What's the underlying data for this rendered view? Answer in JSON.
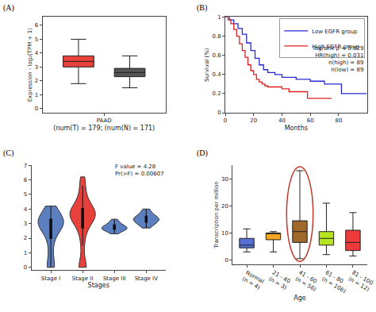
{
  "chart_data": [
    {
      "panel_label": "(A)",
      "type": "box",
      "xlabel": "(num(T) = 179; (num(N) = 171)",
      "ylabel": "Expression - log₂(TPM + 1)",
      "xlim": [
        -0.7,
        1.7
      ],
      "xticks": [
        {
          "value": 0.5,
          "label": "PAAD"
        }
      ],
      "ylim": [
        -0.3,
        6.6
      ],
      "yticks": [
        0,
        1,
        2,
        3,
        4,
        5,
        6
      ],
      "series": [
        {
          "color": "#e8413b",
          "x": 0,
          "q1": 3.0,
          "median": 3.4,
          "q3": 3.8,
          "lowerfence": 1.8,
          "upperfence": 5.0
        },
        {
          "color": "#555555",
          "x": 1,
          "q1": 2.3,
          "median": 2.6,
          "q3": 2.9,
          "lowerfence": 1.5,
          "upperfence": 3.8
        }
      ]
    },
    {
      "panel_label": "(B)",
      "type": "line",
      "line_style": "step",
      "xlabel": "Months",
      "ylabel": "Survival (%)",
      "xlim": [
        0,
        100
      ],
      "xticks": [
        0,
        20,
        40,
        60,
        80
      ],
      "ylim": [
        0,
        1
      ],
      "yticks": [
        0,
        0.2,
        0.4,
        0.6,
        0.8,
        1
      ],
      "legend": "top-right",
      "annotations": [
        "logrank p = 0.029",
        "HR(high) = 0.031",
        "n(high) = 89",
        "n(low) = 89"
      ],
      "series": [
        {
          "name": "Low EGFR group",
          "color": "#2828d8",
          "x": [
            0,
            3,
            6,
            9,
            12,
            15,
            18,
            21,
            24,
            27,
            30,
            35,
            40,
            50,
            60,
            70,
            82,
            100
          ],
          "values": [
            1,
            0.97,
            0.93,
            0.88,
            0.82,
            0.73,
            0.65,
            0.57,
            0.5,
            0.45,
            0.42,
            0.4,
            0.37,
            0.35,
            0.33,
            0.3,
            0.2,
            0.2
          ]
        },
        {
          "name": "High EGFR group",
          "color": "#e02020",
          "x": [
            0,
            2,
            4,
            6,
            8,
            10,
            12,
            14,
            16,
            18,
            20,
            22,
            24,
            26,
            28,
            30,
            40,
            45,
            58,
            75
          ],
          "values": [
            1,
            0.97,
            0.93,
            0.87,
            0.8,
            0.72,
            0.65,
            0.58,
            0.5,
            0.44,
            0.4,
            0.35,
            0.32,
            0.3,
            0.28,
            0.27,
            0.25,
            0.22,
            0.15,
            0.15
          ]
        }
      ]
    },
    {
      "panel_label": "(C)",
      "type": "violin",
      "xlabel": "Stages",
      "categories": [
        "Stage I",
        "Stage II",
        "Stage III",
        "Stage IV"
      ],
      "colors": [
        "#5b7fbf",
        "#e8413b",
        "#5b7fbf",
        "#5b7fbf"
      ],
      "ylim": [
        -0.2,
        7
      ],
      "yticks": [
        0,
        1,
        2,
        3,
        4,
        5,
        6,
        7
      ],
      "annotations": [
        "F value = 4.28",
        "Pr(>F) = 0.00607"
      ],
      "values": [
        [
          0,
          0,
          0,
          0.9,
          1.6,
          2.1,
          2.5,
          2.7,
          2.8,
          2.9,
          3.0,
          3.0,
          3.1,
          3.1,
          3.2,
          3.3,
          3.4,
          3.6,
          3.8,
          4.0,
          4.2
        ],
        [
          0,
          0,
          0,
          1.5,
          2.3,
          2.8,
          3.1,
          3.3,
          3.4,
          3.5,
          3.6,
          3.6,
          3.7,
          3.8,
          3.9,
          4.0,
          4.2,
          4.5,
          5.0,
          5.6,
          6.2
        ],
        [
          2.3,
          2.45,
          2.55,
          2.6,
          2.65,
          2.7,
          2.7,
          2.75,
          2.8,
          2.9,
          3.0,
          3.1,
          3.3
        ],
        [
          2.7,
          2.9,
          3.0,
          3.1,
          3.2,
          3.25,
          3.3,
          3.35,
          3.4,
          3.5,
          3.6,
          3.8,
          4.0
        ]
      ]
    },
    {
      "panel_label": "(D)",
      "type": "box",
      "xlabel": "Age",
      "ylabel": "Transcription per million",
      "categories": [
        "Normal\n(n = 4)",
        "21 - 40\n(n = 3)",
        "41 - 60\n(n = 56)",
        "61 - 80\n(n = 106)",
        "81 - 100\n(n = 12)"
      ],
      "colors": [
        "#5470d6",
        "#f5a623",
        "#a0692c",
        "#b5e61d",
        "#ee3a3a"
      ],
      "ylim": [
        -1.5,
        35
      ],
      "yticks": [
        0,
        10,
        20,
        30
      ],
      "q1": [
        4.5,
        7.5,
        6.5,
        5.5,
        3.5
      ],
      "median": [
        5.5,
        9.7,
        10.5,
        8,
        6.5
      ],
      "q3": [
        8,
        10,
        14.5,
        10.5,
        11
      ],
      "lowerfence": [
        3,
        3,
        0.5,
        2,
        1.5
      ],
      "upperfence": [
        11.5,
        10.5,
        33,
        21,
        17.5
      ]
    }
  ]
}
